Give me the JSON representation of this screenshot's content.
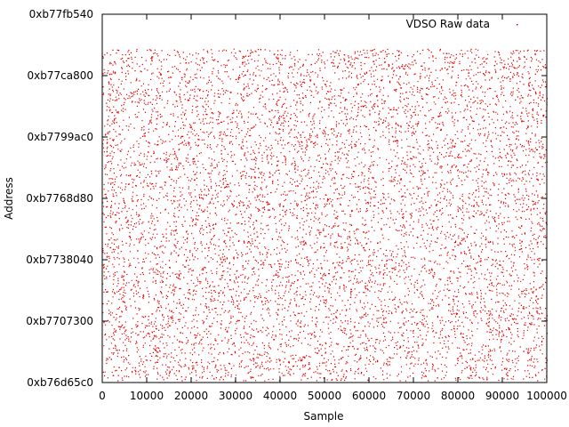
{
  "chart_data": {
    "type": "scatter",
    "title": "",
    "xlabel": "Sample",
    "ylabel": "Address",
    "xlim": [
      0,
      100000
    ],
    "ylim_labels": [
      "0xb76d65c0",
      "0xb77fb540"
    ],
    "x_ticks": [
      0,
      10000,
      20000,
      30000,
      40000,
      50000,
      60000,
      70000,
      80000,
      90000,
      100000
    ],
    "y_ticks": [
      "0xb76d65c0",
      "0xb7707300",
      "0xb7738040",
      "0xb7768d80",
      "0xb7799ac0",
      "0xb77ca800",
      "0xb77fb540"
    ],
    "legend": {
      "position": "top-right"
    },
    "series": [
      {
        "name": "VDSO Raw data",
        "color": "#e00000",
        "x_range": [
          0,
          100000
        ],
        "y_range_labels": [
          "0xb76d8000",
          "0xb77e0000"
        ],
        "distribution": "dense uniform random fill of the address range across all samples"
      }
    ],
    "grid": false
  }
}
